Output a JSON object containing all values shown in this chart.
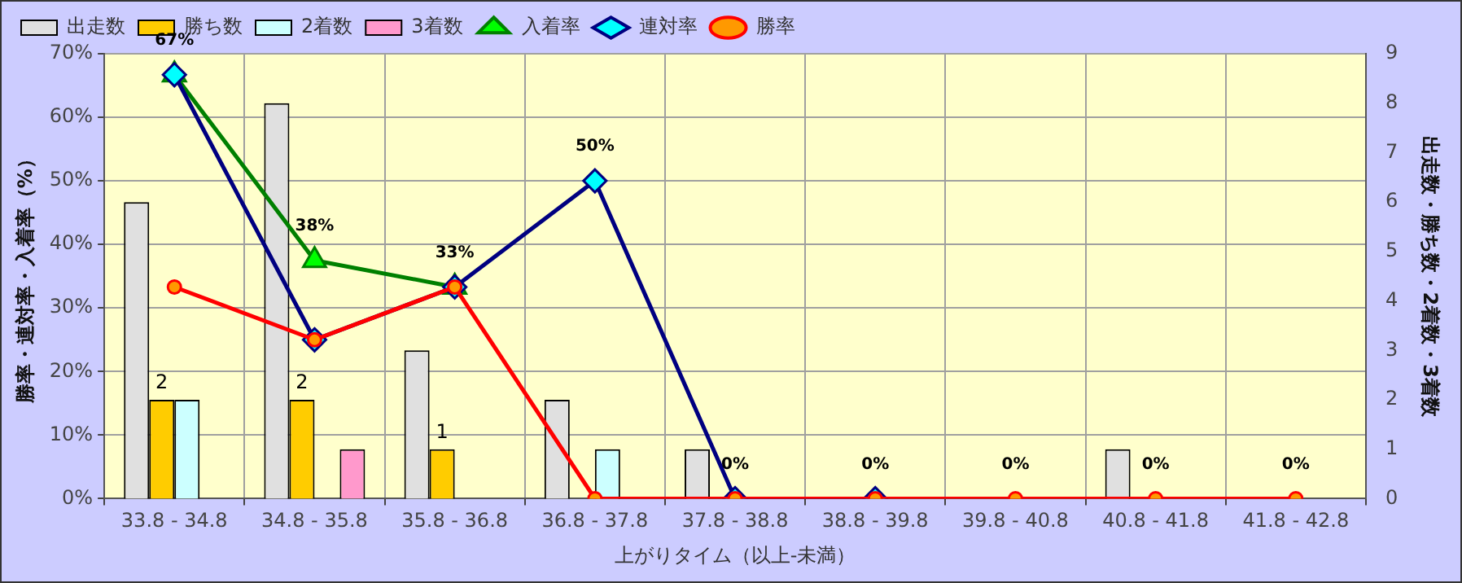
{
  "chart_data": {
    "type": "bar",
    "xlabel": "上がりタイム（以上-未満）",
    "ylabel": "勝率・連対率・入着率（%）",
    "y2label": "出走数・勝ち数・2着数・3着数",
    "categories": [
      "33.8 - 34.8",
      "34.8 - 35.8",
      "35.8 - 36.8",
      "36.8 - 37.8",
      "37.8 - 38.8",
      "38.8 - 39.8",
      "39.8 - 40.8",
      "40.8 - 41.8",
      "41.8 - 42.8"
    ],
    "series": [
      {
        "name": "出走数",
        "type": "bar",
        "axis": "y2",
        "color": "#e0e0e0",
        "values": [
          6,
          8,
          3,
          2,
          1,
          0,
          0,
          1,
          0
        ]
      },
      {
        "name": "勝ち数",
        "type": "bar",
        "axis": "y2",
        "color": "#ffcc00",
        "values": [
          2,
          2,
          1,
          0,
          0,
          0,
          0,
          0,
          0
        ],
        "value_labels": [
          "2",
          "2",
          "1",
          null,
          null,
          null,
          null,
          null,
          null
        ]
      },
      {
        "name": "2着数",
        "type": "bar",
        "axis": "y2",
        "color": "#ccffff",
        "values": [
          2,
          0,
          0,
          1,
          0,
          0,
          0,
          0,
          0
        ]
      },
      {
        "name": "3着数",
        "type": "bar",
        "axis": "y2",
        "color": "#ff99cc",
        "values": [
          0,
          1,
          0,
          0,
          0,
          0,
          0,
          0,
          0
        ]
      },
      {
        "name": "入着率",
        "type": "line",
        "color": "#008000",
        "marker": "triangle",
        "values": [
          66.7,
          37.5,
          33.3,
          null,
          null,
          null,
          null,
          null,
          null
        ],
        "value_labels": [
          "67%",
          "38%",
          "33%",
          null,
          null,
          null,
          null,
          null,
          null
        ]
      },
      {
        "name": "連対率",
        "type": "line",
        "color": "#000080",
        "marker": "diamond",
        "values": [
          66.7,
          25,
          33.3,
          50,
          0,
          0,
          null,
          null,
          null
        ],
        "value_labels": [
          null,
          null,
          null,
          "50%",
          "0%",
          "0%",
          null,
          null,
          null
        ]
      },
      {
        "name": "勝率",
        "type": "line",
        "color": "#ff0000",
        "marker": "circle",
        "values": [
          33.3,
          25,
          33.3,
          0,
          0,
          0,
          0,
          0,
          0
        ],
        "value_labels": [
          null,
          null,
          null,
          null,
          null,
          null,
          "0%",
          "0%",
          "0%"
        ]
      }
    ],
    "ylim": [
      0,
      70
    ],
    "yticks": [
      {
        "value": 0,
        "label": "0%"
      },
      {
        "value": 10,
        "label": "10%"
      },
      {
        "value": 20,
        "label": "20%"
      },
      {
        "value": 30,
        "label": "30%"
      },
      {
        "value": 40,
        "label": "40%"
      },
      {
        "value": 50,
        "label": "50%"
      },
      {
        "value": 60,
        "label": "60%"
      },
      {
        "value": 70,
        "label": "70%"
      }
    ],
    "y2lim": [
      0,
      9
    ],
    "y2ticks": [
      0,
      1,
      2,
      3,
      4,
      5,
      6,
      7,
      8,
      9
    ],
    "grid": true,
    "legend": "top"
  }
}
